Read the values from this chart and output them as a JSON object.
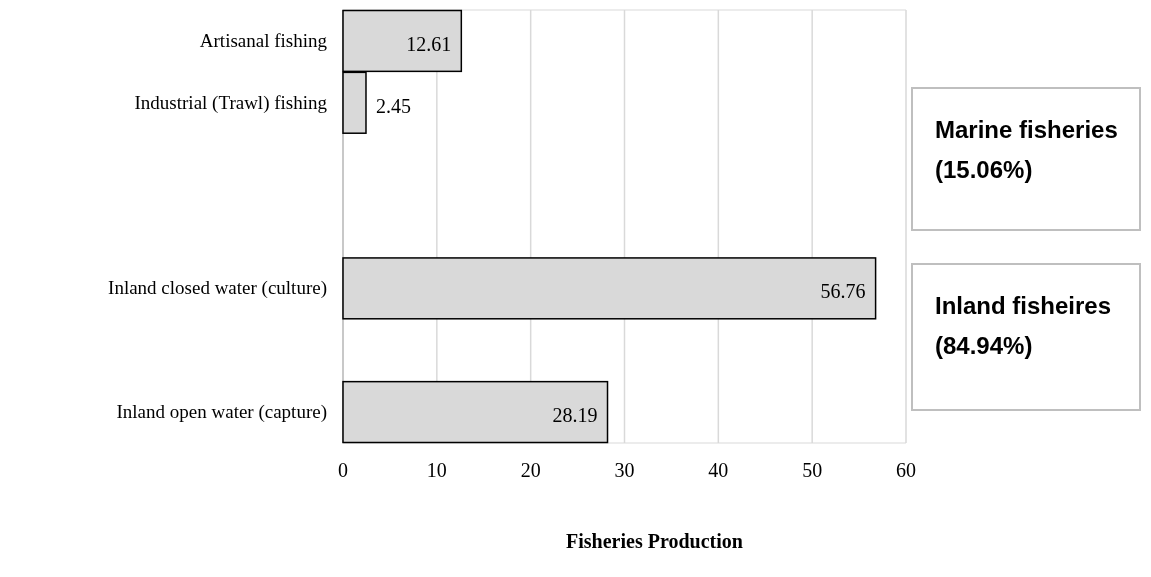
{
  "chart_data": {
    "type": "bar",
    "orientation": "horizontal",
    "xlabel": "Fisheries Production",
    "categories": [
      "Artisanal fishing",
      "Industrial (Trawl) fishing",
      null,
      null,
      "Inland closed water (culture)",
      null,
      "Inland open water (capture)"
    ],
    "values": [
      12.61,
      2.45,
      null,
      null,
      56.76,
      null,
      28.19
    ],
    "color": "#d9d9d9",
    "xlim": [
      0,
      60
    ],
    "xticks": [
      0,
      10,
      20,
      30,
      40,
      50,
      60
    ],
    "grid": "x",
    "data_labels": true,
    "annotations": [
      "Marine fisheries (15.06%)",
      "Inland fisheires (84.94%)"
    ]
  }
}
